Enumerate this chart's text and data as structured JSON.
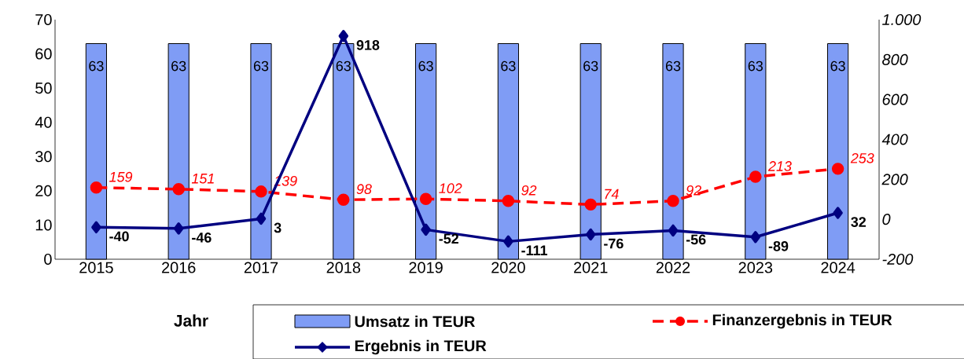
{
  "chart_data": {
    "type": "bar",
    "xlabel": "Jahr",
    "categories": [
      "2015",
      "2016",
      "2017",
      "2018",
      "2019",
      "2020",
      "2021",
      "2022",
      "2023",
      "2024"
    ],
    "series": [
      {
        "name": "Umsatz in TEUR",
        "color": "#7f9cf5",
        "values": [
          63,
          63,
          63,
          63,
          63,
          63,
          63,
          63,
          63,
          63
        ]
      },
      {
        "name": "Finanzergebnis in TEUR",
        "type": "line",
        "axis": "y2",
        "color": "#ff0000",
        "marker": "circle",
        "line_style": "dashed",
        "values": [
          159,
          151,
          139,
          98,
          102,
          92,
          74,
          92,
          213,
          253
        ]
      },
      {
        "name": "Ergebnis in TEUR",
        "type": "line",
        "axis": "y2",
        "color": "#000080",
        "marker": "diamond",
        "line_style": "solid",
        "values": [
          -40,
          -46,
          3,
          918,
          -52,
          -111,
          -76,
          -56,
          -89,
          32
        ]
      }
    ],
    "ylim": [
      0,
      70
    ],
    "yticks": [
      0,
      10,
      20,
      30,
      40,
      50,
      60,
      70
    ],
    "y2lim": [
      -200,
      1000
    ],
    "y2ticks": [
      -200,
      0,
      200,
      400,
      600,
      800,
      {
        "value": 1000,
        "label": "1.000"
      }
    ],
    "data_labels": true,
    "legend": "bottom",
    "grid": false
  }
}
